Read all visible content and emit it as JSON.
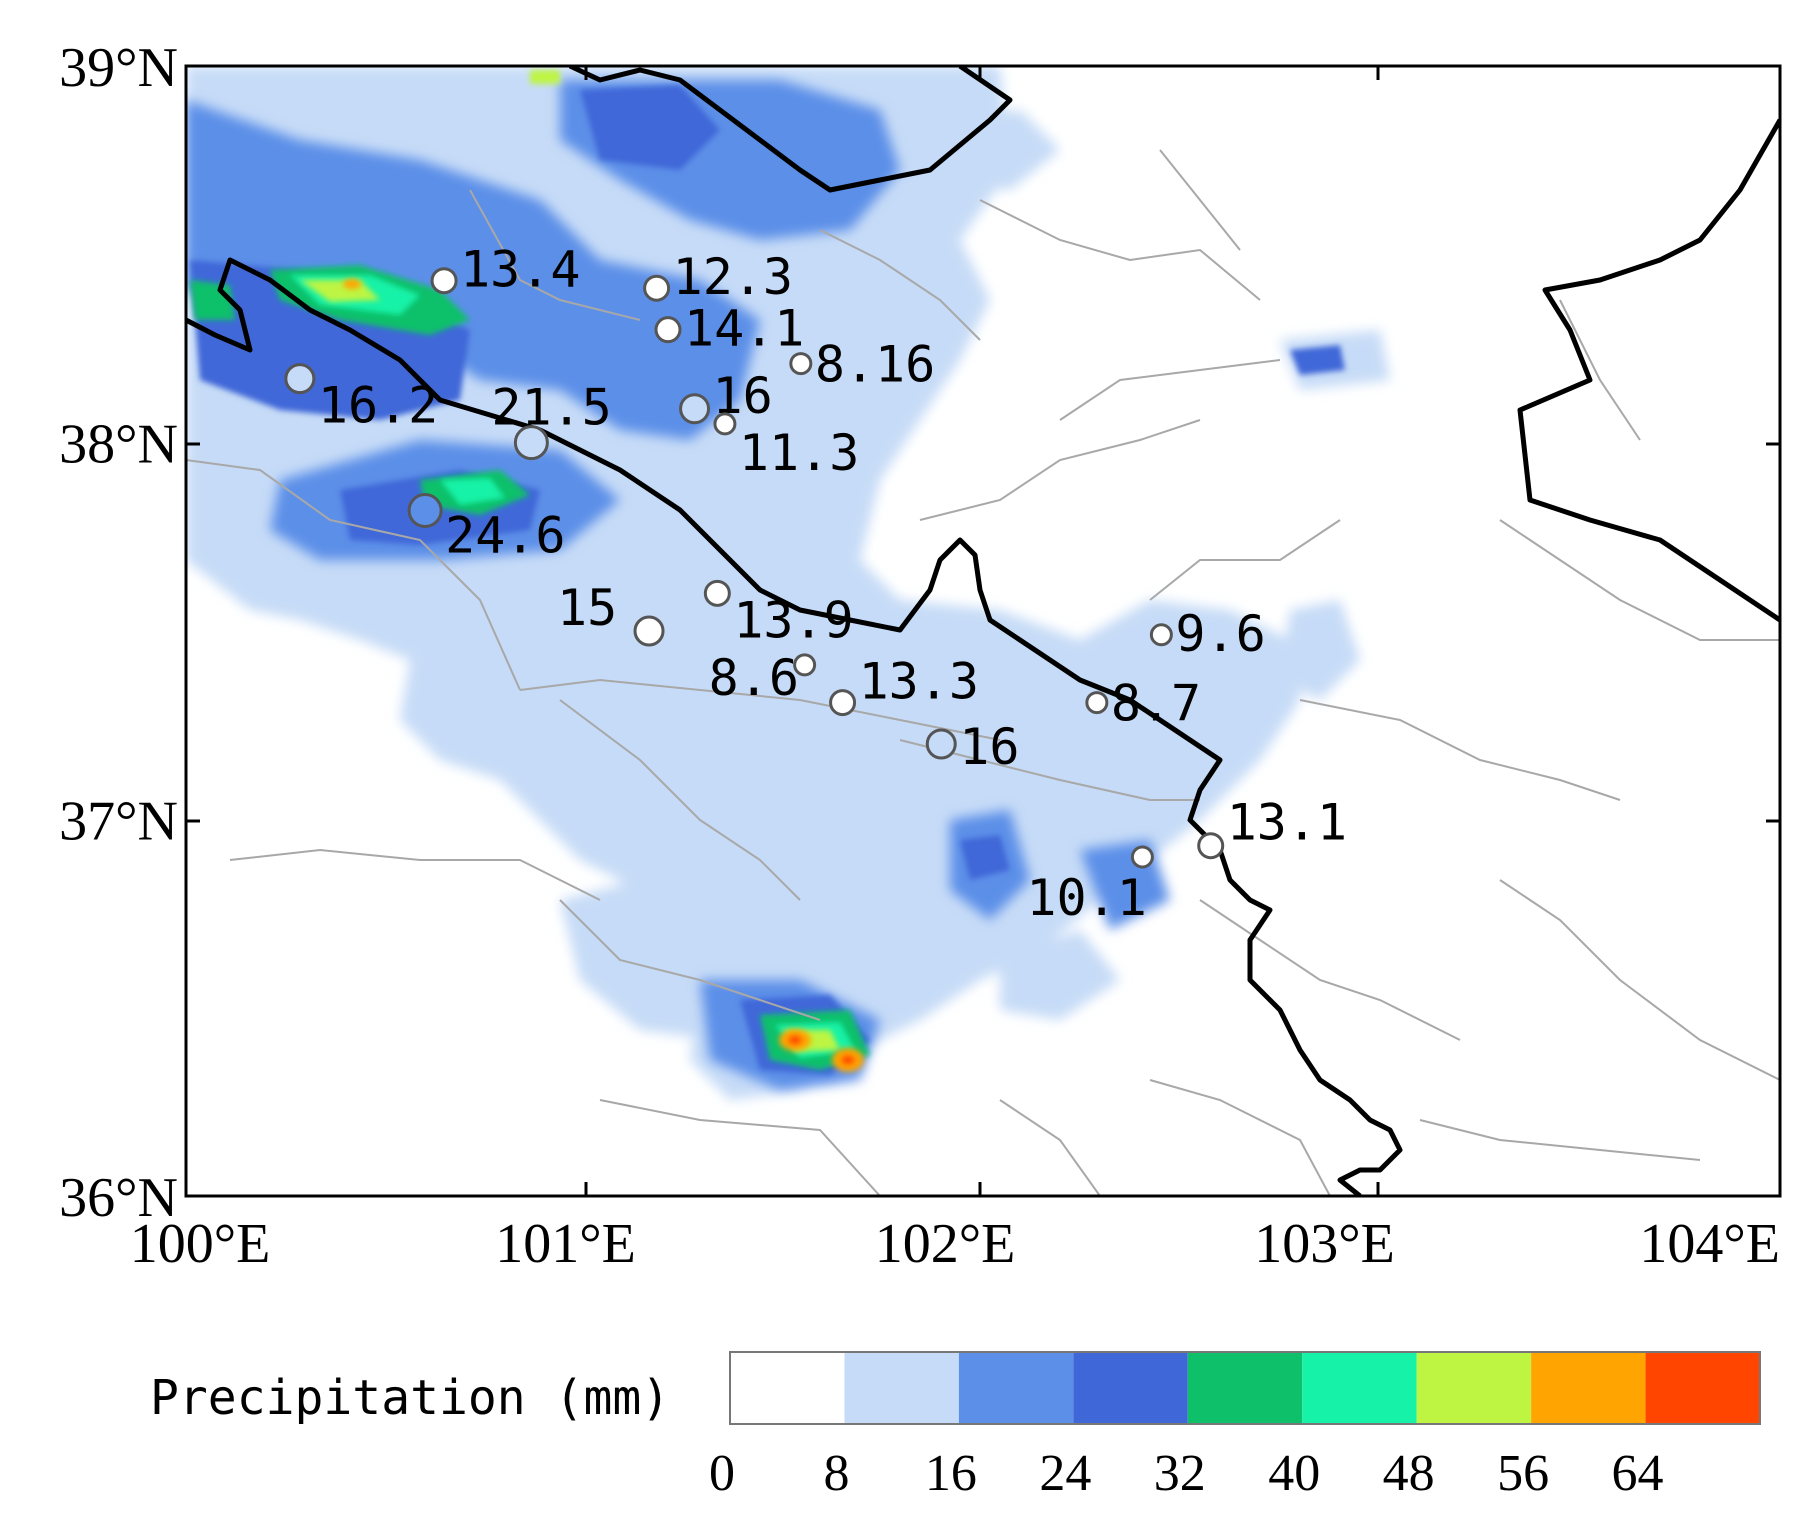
{
  "map": {
    "lon_range": [
      100,
      104.2
    ],
    "lat_range": [
      36,
      39
    ],
    "lon_ticks": [
      {
        "value": 100,
        "label": "100°E"
      },
      {
        "value": 101,
        "label": "101°E"
      },
      {
        "value": 102,
        "label": "102°E"
      },
      {
        "value": 103,
        "label": "103°E"
      },
      {
        "value": 104,
        "label": "104°E"
      }
    ],
    "lat_ticks": [
      {
        "value": 39,
        "label": "39°N"
      },
      {
        "value": 38,
        "label": "38°N"
      },
      {
        "value": 37,
        "label": "37°N"
      },
      {
        "value": 36,
        "label": "36°N"
      }
    ]
  },
  "stations": [
    {
      "lon": 100.68,
      "lat": 38.43,
      "value": "13.4"
    },
    {
      "lon": 101.24,
      "lat": 38.41,
      "value": "12.3"
    },
    {
      "lon": 101.27,
      "lat": 38.3,
      "value": "14.1"
    },
    {
      "lon": 101.62,
      "lat": 38.21,
      "value": "8.16"
    },
    {
      "lon": 100.3,
      "lat": 38.17,
      "value": "16.2"
    },
    {
      "lon": 101.34,
      "lat": 38.09,
      "value": "16"
    },
    {
      "lon": 101.42,
      "lat": 38.05,
      "value": "11.3"
    },
    {
      "lon": 100.91,
      "lat": 38.0,
      "value": "21.5"
    },
    {
      "lon": 100.63,
      "lat": 37.82,
      "value": "24.6"
    },
    {
      "lon": 101.4,
      "lat": 37.6,
      "value": "13.9"
    },
    {
      "lon": 101.22,
      "lat": 37.5,
      "value": "15"
    },
    {
      "lon": 102.57,
      "lat": 37.49,
      "value": "9.6"
    },
    {
      "lon": 101.63,
      "lat": 37.41,
      "value": "8.6"
    },
    {
      "lon": 101.73,
      "lat": 37.31,
      "value": "13.3"
    },
    {
      "lon": 102.4,
      "lat": 37.31,
      "value": "8.7"
    },
    {
      "lon": 101.99,
      "lat": 37.2,
      "value": "16"
    },
    {
      "lon": 102.7,
      "lat": 36.93,
      "value": "13.1"
    },
    {
      "lon": 102.52,
      "lat": 36.9,
      "value": "10.1"
    }
  ],
  "legend": {
    "title": "Precipitation (mm)",
    "ticks": [
      "0",
      "8",
      "16",
      "24",
      "32",
      "40",
      "48",
      "56",
      "64"
    ],
    "colors": [
      "#ffffff",
      "#c6dbf7",
      "#5b8fe8",
      "#3f67d8",
      "#0fc06a",
      "#16f2a7",
      "#bdf542",
      "#ffa400",
      "#ff4500"
    ]
  }
}
